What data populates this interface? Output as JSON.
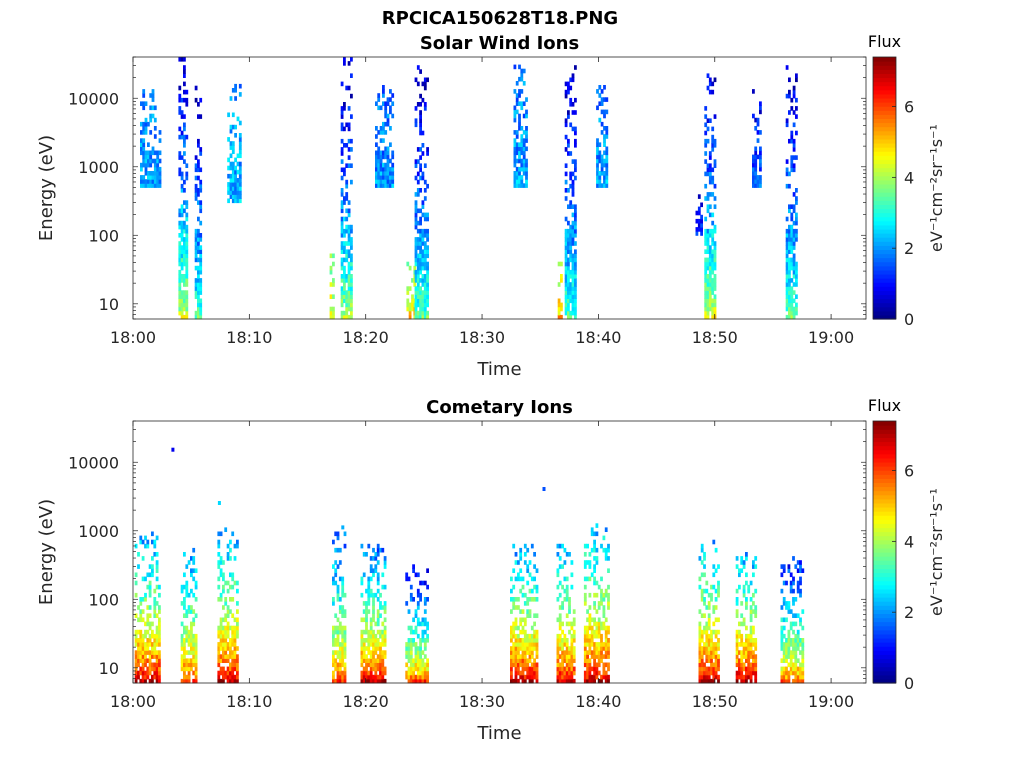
{
  "page": {
    "title": "RPCICA150628T18.PNG"
  },
  "chart_data": [
    {
      "type": "heatmap",
      "title": "Solar Wind Ions",
      "xlabel": "Time",
      "ylabel": "Energy (eV)",
      "x_ticks": [
        "18:00",
        "18:10",
        "18:20",
        "18:30",
        "18:40",
        "18:50",
        "19:00"
      ],
      "x_range_minutes": [
        0,
        63
      ],
      "y_scale": "log",
      "y_ticks": [
        10,
        100,
        1000,
        10000
      ],
      "y_range": [
        6,
        40000
      ],
      "colorbar": {
        "title": "Flux",
        "label": "eV⁻¹cm⁻²sr⁻¹s⁻¹",
        "ticks": [
          0,
          2,
          4,
          6
        ],
        "range": [
          0,
          7.4
        ],
        "colormap": "jet"
      },
      "bursts": [
        {
          "t": 4.3,
          "w": 0.8,
          "emin": 6,
          "emax": 35000,
          "vlow": 4.5,
          "vhigh": 0.6
        },
        {
          "t": 5.6,
          "w": 0.6,
          "emin": 6,
          "emax": 20000,
          "vlow": 3.5,
          "vhigh": 0.5
        },
        {
          "t": 1.5,
          "w": 1.8,
          "emin": 500,
          "emax": 15000,
          "vlow": 2.2,
          "vhigh": 1.8
        },
        {
          "t": 8.6,
          "w": 1.0,
          "emin": 300,
          "emax": 15000,
          "vlow": 2.3,
          "vhigh": 2.0
        },
        {
          "t": 17.1,
          "w": 0.4,
          "emin": 6,
          "emax": 60,
          "vlow": 4.8,
          "vhigh": 3.5
        },
        {
          "t": 18.3,
          "w": 0.9,
          "emin": 6,
          "emax": 35000,
          "vlow": 4.2,
          "vhigh": 0.5
        },
        {
          "t": 21.5,
          "w": 1.4,
          "emin": 500,
          "emax": 15000,
          "vlow": 2.1,
          "vhigh": 1.6
        },
        {
          "t": 23.8,
          "w": 0.6,
          "emin": 6,
          "emax": 40,
          "vlow": 5.0,
          "vhigh": 3.8
        },
        {
          "t": 24.7,
          "w": 1.0,
          "emin": 6,
          "emax": 30000,
          "vlow": 3.6,
          "vhigh": 0.5
        },
        {
          "t": 33.3,
          "w": 1.2,
          "emin": 500,
          "emax": 30000,
          "vlow": 2.2,
          "vhigh": 1.8
        },
        {
          "t": 36.7,
          "w": 0.4,
          "emin": 6,
          "emax": 40,
          "vlow": 5.2,
          "vhigh": 4.0
        },
        {
          "t": 37.6,
          "w": 1.0,
          "emin": 6,
          "emax": 30000,
          "vlow": 3.5,
          "vhigh": 0.5
        },
        {
          "t": 40.3,
          "w": 1.0,
          "emin": 500,
          "emax": 15000,
          "vlow": 2.2,
          "vhigh": 1.8
        },
        {
          "t": 48.6,
          "w": 0.5,
          "emin": 100,
          "emax": 400,
          "vlow": 1.5,
          "vhigh": 0.8
        },
        {
          "t": 49.6,
          "w": 1.0,
          "emin": 6,
          "emax": 28000,
          "vlow": 4.6,
          "vhigh": 0.5
        },
        {
          "t": 53.6,
          "w": 0.8,
          "emin": 500,
          "emax": 15000,
          "vlow": 1.8,
          "vhigh": 0.8
        },
        {
          "t": 56.6,
          "w": 1.0,
          "emin": 6,
          "emax": 30000,
          "vlow": 3.6,
          "vhigh": 0.6
        }
      ]
    },
    {
      "type": "heatmap",
      "title": "Cometary Ions",
      "xlabel": "Time",
      "ylabel": "Energy (eV)",
      "x_ticks": [
        "18:00",
        "18:10",
        "18:20",
        "18:30",
        "18:40",
        "18:50",
        "19:00"
      ],
      "x_range_minutes": [
        0,
        63
      ],
      "y_scale": "log",
      "y_ticks": [
        10,
        100,
        1000,
        10000
      ],
      "y_range": [
        6,
        40000
      ],
      "colorbar": {
        "title": "Flux",
        "label": "eV⁻¹cm⁻²sr⁻¹s⁻¹",
        "ticks": [
          0,
          2,
          4,
          6
        ],
        "range": [
          0,
          7.4
        ],
        "colormap": "jet"
      },
      "bursts": [
        {
          "t": 1.2,
          "w": 2.1,
          "emin": 6,
          "emax": 900,
          "vlow": 7.0,
          "vhigh": 2.0
        },
        {
          "t": 4.8,
          "w": 1.4,
          "emin": 6,
          "emax": 500,
          "vlow": 6.2,
          "vhigh": 2.0
        },
        {
          "t": 8.1,
          "w": 1.7,
          "emin": 6,
          "emax": 1000,
          "vlow": 7.0,
          "vhigh": 2.0
        },
        {
          "t": 17.6,
          "w": 1.0,
          "emin": 6,
          "emax": 1000,
          "vlow": 6.2,
          "vhigh": 1.5
        },
        {
          "t": 20.6,
          "w": 2.1,
          "emin": 6,
          "emax": 700,
          "vlow": 7.0,
          "vhigh": 1.5
        },
        {
          "t": 24.3,
          "w": 1.8,
          "emin": 6,
          "emax": 300,
          "vlow": 6.3,
          "vhigh": 0.6
        },
        {
          "t": 33.6,
          "w": 2.4,
          "emin": 6,
          "emax": 600,
          "vlow": 7.1,
          "vhigh": 2.0
        },
        {
          "t": 37.2,
          "w": 1.6,
          "emin": 6,
          "emax": 600,
          "vlow": 6.8,
          "vhigh": 2.2
        },
        {
          "t": 39.8,
          "w": 2.1,
          "emin": 6,
          "emax": 1200,
          "vlow": 7.0,
          "vhigh": 2.2
        },
        {
          "t": 49.5,
          "w": 1.8,
          "emin": 6,
          "emax": 700,
          "vlow": 7.0,
          "vhigh": 2.2
        },
        {
          "t": 52.7,
          "w": 1.8,
          "emin": 6,
          "emax": 500,
          "vlow": 7.2,
          "vhigh": 2.0
        },
        {
          "t": 56.6,
          "w": 1.9,
          "emin": 6,
          "emax": 400,
          "vlow": 6.0,
          "vhigh": 1.0
        }
      ],
      "sparse_points": [
        {
          "t": 3.3,
          "e": 15000,
          "v": 0.8
        },
        {
          "t": 7.3,
          "e": 2500,
          "v": 2.5
        },
        {
          "t": 35.2,
          "e": 4000,
          "v": 1.5
        },
        {
          "t": 17.9,
          "e": 1100,
          "v": 2.2
        }
      ]
    }
  ]
}
